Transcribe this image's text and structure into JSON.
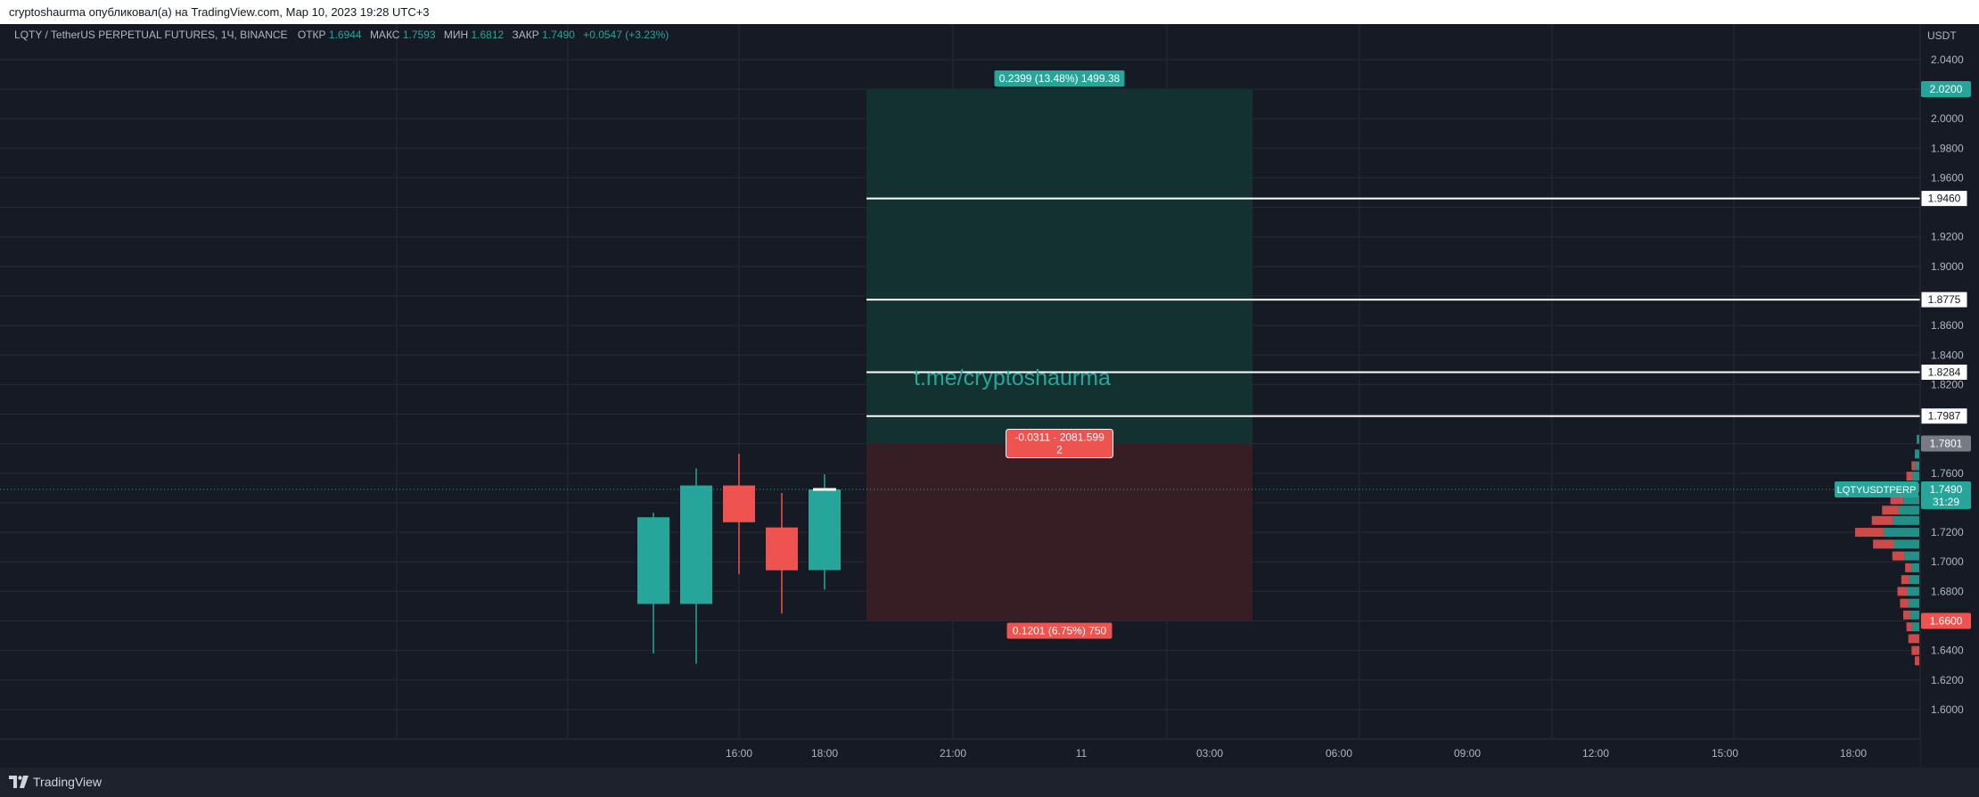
{
  "header": {
    "published_text": "cryptoshaurma опубликовал(а) на TradingView.com, Мар 10, 2023 19:28 UTC+3"
  },
  "legend": {
    "symbol": "LQTY / TetherUS PERPETUAL FUTURES, 1Ч, BINANCE",
    "open_label": "ОТКР",
    "open_value": "1.6944",
    "high_label": "МАКС",
    "high_value": "1.7593",
    "low_label": "МИН",
    "low_value": "1.6812",
    "close_label": "ЗАКР",
    "close_value": "1.7490",
    "change_value": "+0.0547 (+3.23%)"
  },
  "watermark": "t.me/cryptoshaurma",
  "footer": {
    "brand": "TradingView"
  },
  "colors": {
    "background": "#161a25",
    "grid": "#252a36",
    "up": "#26a69a",
    "down": "#ef5350",
    "target_zone": "#133432",
    "stop_zone": "#3a1f25",
    "text": "#b2b5be"
  },
  "chart_data": {
    "type": "candlestick",
    "price_scale_unit": "USDT",
    "ylim": [
      1.58,
      2.05
    ],
    "y_ticks": [
      "1.6000",
      "1.6200",
      "1.6400",
      "1.6800",
      "1.7000",
      "1.7200",
      "1.7600",
      "1.8200",
      "1.8400",
      "1.8600",
      "1.9000",
      "1.9200",
      "1.9600",
      "1.9800",
      "2.0000",
      "2.0400"
    ],
    "x_ticks": [
      "16:00",
      "18:00",
      "21:00",
      "11",
      "03:00",
      "06:00",
      "09:00",
      "12:00",
      "15:00",
      "18:00"
    ],
    "candles": [
      {
        "time": "14:00",
        "open": 1.6715,
        "high": 1.7332,
        "low": 1.638,
        "close": 1.7302
      },
      {
        "time": "15:00",
        "open": 1.6715,
        "high": 1.7632,
        "low": 1.631,
        "close": 1.7517
      },
      {
        "time": "16:00",
        "open": 1.7517,
        "high": 1.7732,
        "low": 1.6916,
        "close": 1.7268
      },
      {
        "time": "17:00",
        "open": 1.7233,
        "high": 1.7466,
        "low": 1.665,
        "close": 1.6943
      },
      {
        "time": "18:00",
        "open": 1.6944,
        "high": 1.7593,
        "low": 1.6812,
        "close": 1.749
      }
    ],
    "current_price": {
      "value": "1.7490",
      "symbol_label": "LQTYUSDTPERP",
      "countdown": "31:29"
    },
    "long_position": {
      "entry": 1.7801,
      "target": 2.02,
      "stop": 1.66,
      "target_label": "0.2399 (13.48%) 1499.38",
      "center_label_line1": "-0.0311 - 2081.599",
      "center_label_line2": "2",
      "stop_label": "0.1201 (6.75%) 750"
    },
    "horizontal_levels": [
      {
        "value": 1.946,
        "label": "1.9460"
      },
      {
        "value": 1.8775,
        "label": "1.8775"
      },
      {
        "value": 1.8284,
        "label": "1.8284"
      },
      {
        "value": 1.7987,
        "label": "1.7987"
      }
    ],
    "axis_tags": [
      {
        "value": 2.02,
        "label": "2.0200",
        "style": "up"
      },
      {
        "value": 1.7801,
        "label": "1.7801",
        "style": "neutral"
      },
      {
        "value": 1.66,
        "label": "1.6600",
        "style": "down"
      }
    ],
    "volume_profile": [
      {
        "price": 1.783,
        "size": 0.04,
        "side": "buy"
      },
      {
        "price": 1.773,
        "size": 0.07,
        "side": "buy"
      },
      {
        "price": 1.765,
        "size": 0.12,
        "side": "mixed"
      },
      {
        "price": 1.758,
        "size": 0.2,
        "side": "mixed"
      },
      {
        "price": 1.75,
        "size": 0.32,
        "side": "mixed"
      },
      {
        "price": 1.742,
        "size": 0.45,
        "side": "mixed"
      },
      {
        "price": 1.735,
        "size": 0.58,
        "side": "mixed"
      },
      {
        "price": 1.728,
        "size": 0.74,
        "side": "mixed"
      },
      {
        "price": 1.72,
        "size": 1.0,
        "side": "mixed"
      },
      {
        "price": 1.712,
        "size": 0.72,
        "side": "mixed"
      },
      {
        "price": 1.704,
        "size": 0.42,
        "side": "mixed"
      },
      {
        "price": 1.696,
        "size": 0.22,
        "side": "mixed"
      },
      {
        "price": 1.688,
        "size": 0.28,
        "side": "mixed"
      },
      {
        "price": 1.68,
        "size": 0.34,
        "side": "mixed"
      },
      {
        "price": 1.672,
        "size": 0.3,
        "side": "mixed"
      },
      {
        "price": 1.664,
        "size": 0.25,
        "side": "mixed"
      },
      {
        "price": 1.656,
        "size": 0.2,
        "side": "mixed"
      },
      {
        "price": 1.648,
        "size": 0.17,
        "side": "sell"
      },
      {
        "price": 1.64,
        "size": 0.12,
        "side": "sell"
      },
      {
        "price": 1.633,
        "size": 0.07,
        "side": "sell"
      }
    ]
  }
}
